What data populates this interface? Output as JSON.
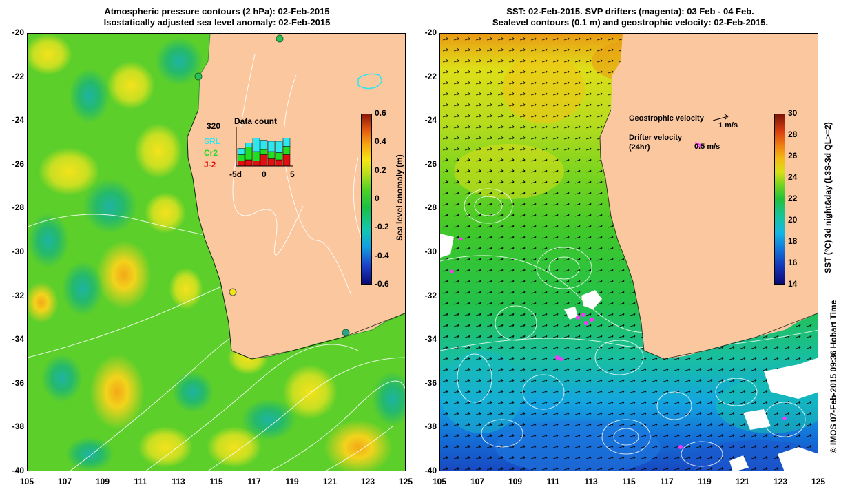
{
  "left_panel": {
    "title_line1": "Atmospheric pressure contours (2 hPa): 02-Feb-2015",
    "title_line2": "Isostatically adjusted sea level anomaly: 02-Feb-2015",
    "colorbar_label": "Sea level anomaly (m)",
    "colorbar_ticks": [
      "0.6",
      "0.4",
      "0.2",
      "0",
      "-0.2",
      "-0.4",
      "-0.6"
    ],
    "inset": {
      "count": "320",
      "title": "Data count",
      "legend": [
        {
          "label": "SRL",
          "color": "#2ee6ee"
        },
        {
          "label": "Cr2",
          "color": "#22dd22"
        },
        {
          "label": "J-2",
          "color": "#e01010"
        }
      ],
      "x_ticks": [
        "-5d",
        "0",
        "5"
      ]
    }
  },
  "right_panel": {
    "title_line1": "SST: 02-Feb-2015. SVP drifters (magenta): 03 Feb - 04 Feb.",
    "title_line2": "Sealevel contours (0.1 m) and geostrophic velocity: 02-Feb-2015.",
    "geo_velocity_label": "Geostrophic velocity",
    "geo_velocity_scale": "1 m/s",
    "drifter_label_line1": "Drifter velocity",
    "drifter_label_line2": "(24hr)",
    "drifter_scale": "0.5 m/s",
    "colorbar_label": "SST (°C) 3d night&day (L3S-3d QL>=2)",
    "colorbar_ticks": [
      "30",
      "28",
      "26",
      "24",
      "22",
      "20",
      "18",
      "16",
      "14"
    ]
  },
  "y_ticks": [
    "-20",
    "-22",
    "-24",
    "-26",
    "-28",
    "-30",
    "-32",
    "-34",
    "-36",
    "-38",
    "-40"
  ],
  "x_ticks": [
    "105",
    "107",
    "109",
    "111",
    "113",
    "115",
    "117",
    "119",
    "121",
    "123",
    "125"
  ],
  "credit": "© IMOS 07-Feb-2015 09:36 Hobart Time",
  "colors": {
    "land": "#fbc79f",
    "ocean_left": "#5ccf2a",
    "drifter": "#ff33ff"
  }
}
